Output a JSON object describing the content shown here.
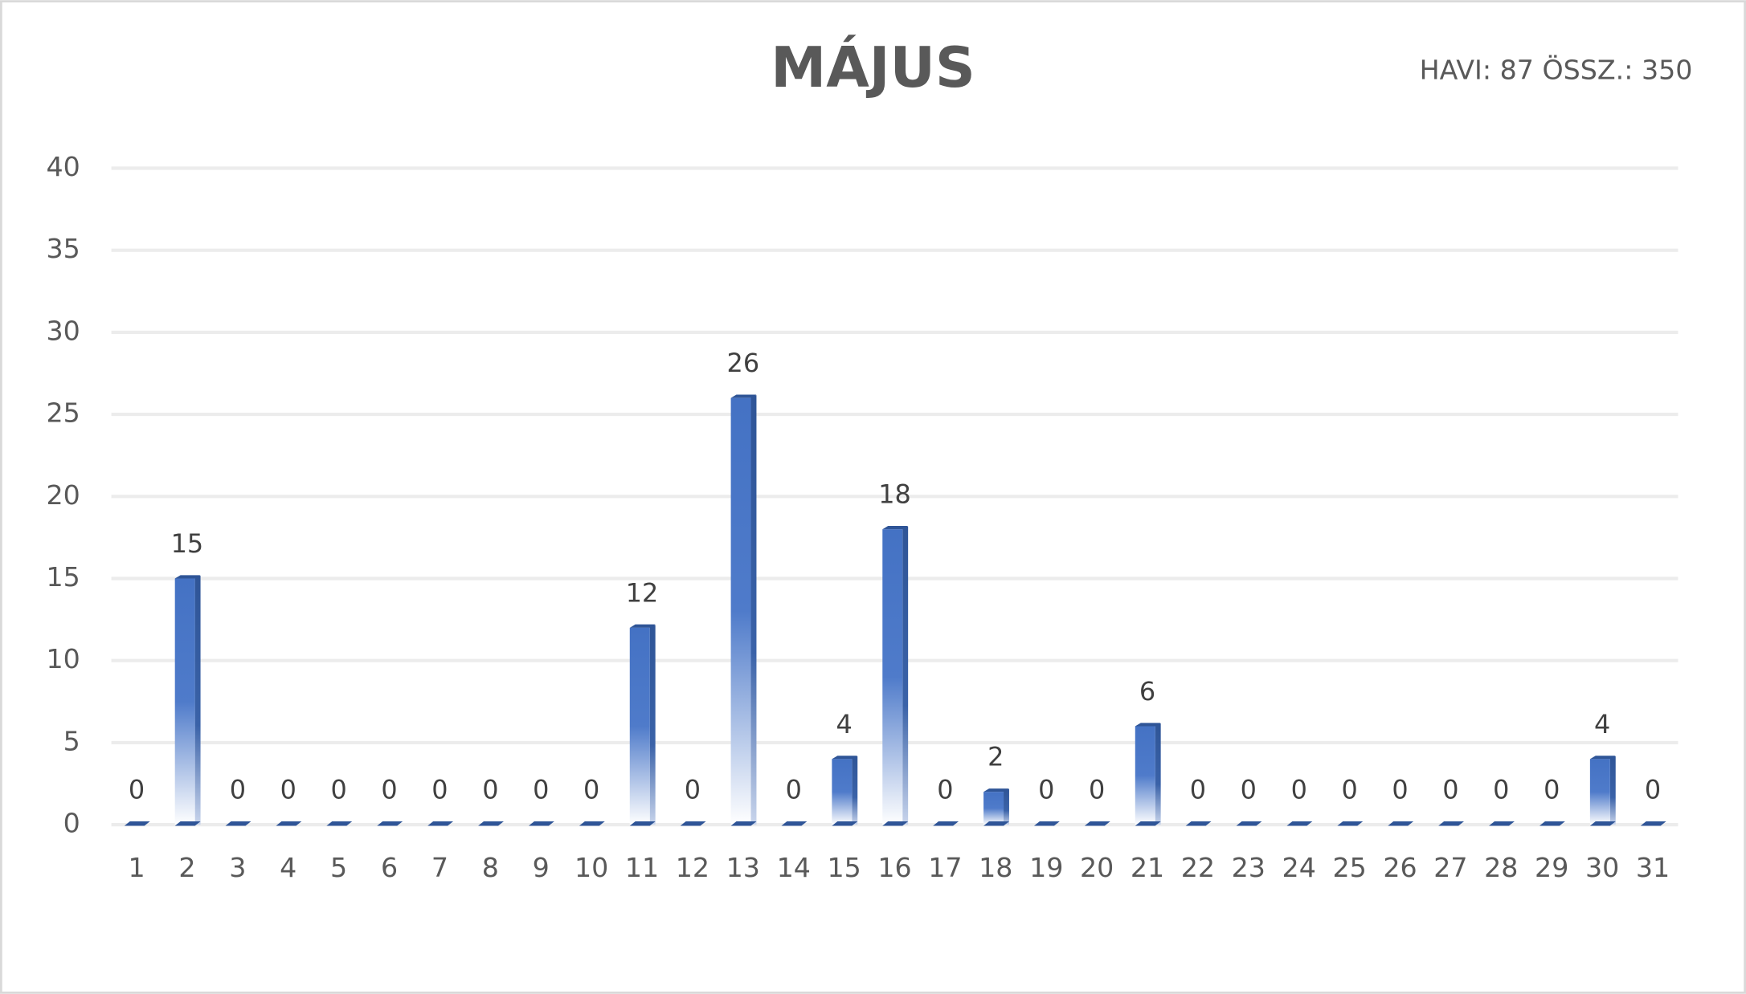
{
  "chart_data": {
    "type": "bar",
    "title": "MÁJUS",
    "subtitle": "HAVI:  87 ÖSSZ.: 350",
    "categories": [
      "1",
      "2",
      "3",
      "4",
      "5",
      "6",
      "7",
      "8",
      "9",
      "10",
      "11",
      "12",
      "13",
      "14",
      "15",
      "16",
      "17",
      "18",
      "19",
      "20",
      "21",
      "22",
      "23",
      "24",
      "25",
      "26",
      "27",
      "28",
      "29",
      "30",
      "31"
    ],
    "values": [
      0,
      15,
      0,
      0,
      0,
      0,
      0,
      0,
      0,
      0,
      12,
      0,
      26,
      0,
      4,
      18,
      0,
      2,
      0,
      0,
      6,
      0,
      0,
      0,
      0,
      0,
      0,
      0,
      0,
      4,
      0
    ],
    "color": "#4472c4",
    "ylim": [
      0,
      40
    ],
    "yticks": [
      0,
      5,
      10,
      15,
      20,
      25,
      30,
      35,
      40
    ],
    "grid": true
  }
}
